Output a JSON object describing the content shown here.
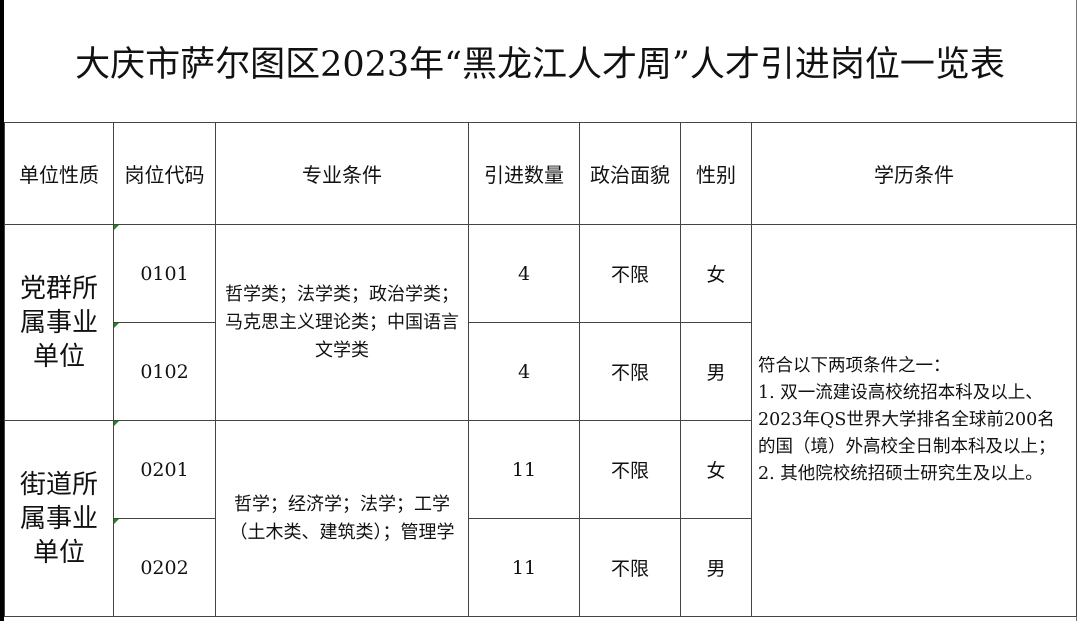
{
  "title": "大庆市萨尔图区2023年“黑龙江人才周”人才引进岗位一览表",
  "headers": [
    "单位性质",
    "岗位代码",
    "专业条件",
    "引进数量",
    "政治面貌",
    "性别",
    "学历条件"
  ],
  "groups": [
    {
      "unit": "党群所属事业单位",
      "major": "哲学类；法学类；政治学类；马克思主义理论类；中国语言文学类",
      "rows": [
        {
          "code": "0101",
          "count": "4",
          "political": "不限",
          "gender": "女"
        },
        {
          "code": "0102",
          "count": "4",
          "political": "不限",
          "gender": "男"
        }
      ]
    },
    {
      "unit": "街道所属事业单位",
      "major": "哲学；经济学；法学；工学（土木类、建筑类）；管理学",
      "rows": [
        {
          "code": "0201",
          "count": "11",
          "political": "不限",
          "gender": "女"
        },
        {
          "code": "0202",
          "count": "11",
          "political": "不限",
          "gender": "男"
        }
      ]
    }
  ],
  "education": "符合以下两项条件之一：\n1. 双一流建设高校统招本科及以上、2023年QS世界大学排名全球前200名的国（境）外高校全日制本科及以上；\n2. 其他院校统招硕士研究生及以上。"
}
